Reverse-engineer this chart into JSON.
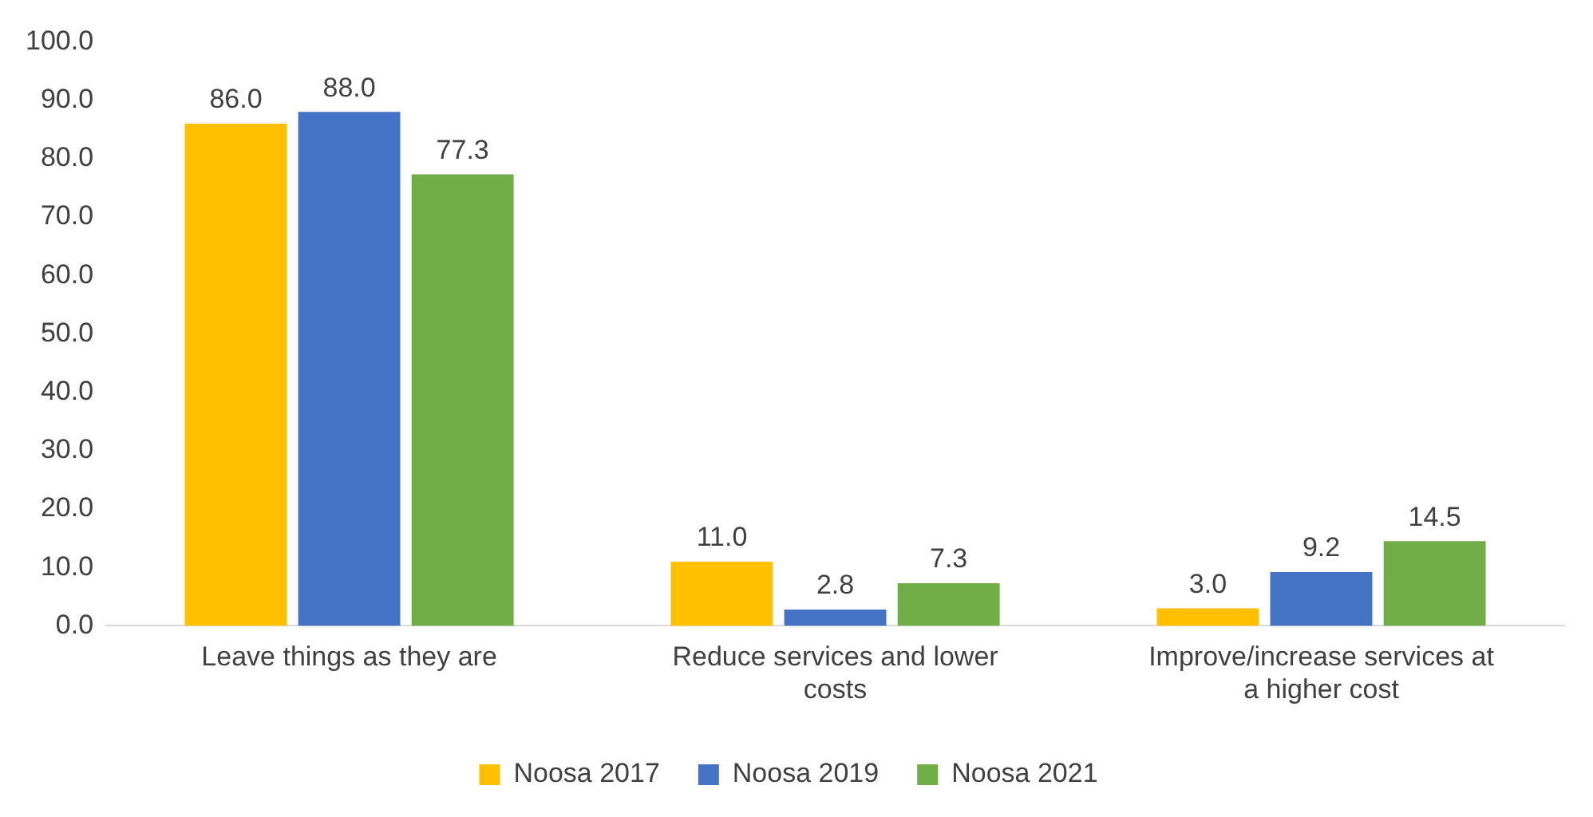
{
  "chart_data": {
    "type": "bar",
    "categories": [
      "Leave things as they are",
      "Reduce services and lower costs",
      "Improve/increase services at a higher cost"
    ],
    "series": [
      {
        "name": "Noosa 2017",
        "color": "#ffc000",
        "values": [
          86,
          11,
          3
        ],
        "value_labels": [
          "86.0",
          "11.0",
          "3.0"
        ]
      },
      {
        "name": "Noosa 2019",
        "color": "#4472c4",
        "values": [
          88,
          2.8,
          9.2
        ],
        "value_labels": [
          "88.0",
          "2.8",
          "9.2"
        ]
      },
      {
        "name": "Noosa 2021",
        "color": "#70ad47",
        "values": [
          77.3,
          7.3,
          14.5
        ],
        "value_labels": [
          "77.3",
          "7.3",
          "14.5"
        ]
      }
    ],
    "ylim": [
      0,
      100
    ],
    "yticks": [
      {
        "value": 0,
        "label": "0.0"
      },
      {
        "value": 10,
        "label": "10.0"
      },
      {
        "value": 20,
        "label": "20.0"
      },
      {
        "value": 30,
        "label": "30.0"
      },
      {
        "value": 40,
        "label": "40.0"
      },
      {
        "value": 50,
        "label": "50.0"
      },
      {
        "value": 60,
        "label": "60.0"
      },
      {
        "value": 70,
        "label": "70.0"
      },
      {
        "value": 80,
        "label": "80.0"
      },
      {
        "value": 90,
        "label": "90.0"
      },
      {
        "value": 100,
        "label": "100.0"
      }
    ],
    "grid": false,
    "legend": "bottom"
  }
}
